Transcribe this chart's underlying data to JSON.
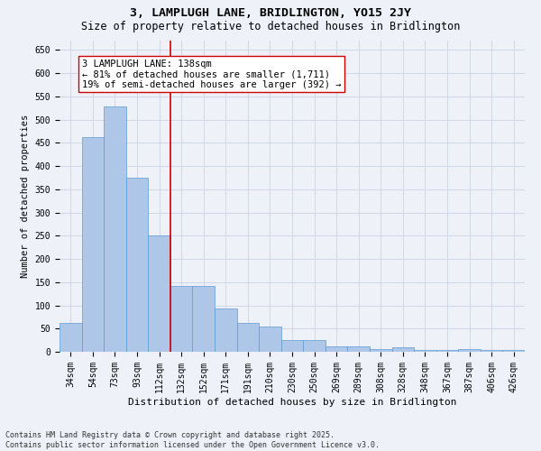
{
  "title": "3, LAMPLUGH LANE, BRIDLINGTON, YO15 2JY",
  "subtitle": "Size of property relative to detached houses in Bridlington",
  "xlabel": "Distribution of detached houses by size in Bridlington",
  "ylabel": "Number of detached properties",
  "categories": [
    "34sqm",
    "54sqm",
    "73sqm",
    "93sqm",
    "112sqm",
    "132sqm",
    "152sqm",
    "171sqm",
    "191sqm",
    "210sqm",
    "230sqm",
    "250sqm",
    "269sqm",
    "289sqm",
    "308sqm",
    "328sqm",
    "348sqm",
    "367sqm",
    "387sqm",
    "406sqm",
    "426sqm"
  ],
  "values": [
    62,
    463,
    528,
    375,
    250,
    141,
    141,
    93,
    62,
    55,
    25,
    25,
    11,
    11,
    6,
    10,
    4,
    4,
    6,
    4,
    3
  ],
  "bar_color": "#aec6e8",
  "bar_edge_color": "#5b9bd5",
  "grid_color": "#d0d8e8",
  "background_color": "#eef2f8",
  "vline_color": "#cc0000",
  "vline_x": 4.5,
  "annotation_text": "3 LAMPLUGH LANE: 138sqm\n← 81% of detached houses are smaller (1,711)\n19% of semi-detached houses are larger (392) →",
  "annotation_box_color": "#ffffff",
  "annotation_box_edge_color": "#cc0000",
  "ylim": [
    0,
    670
  ],
  "yticks": [
    0,
    50,
    100,
    150,
    200,
    250,
    300,
    350,
    400,
    450,
    500,
    550,
    600,
    650
  ],
  "footer": "Contains HM Land Registry data © Crown copyright and database right 2025.\nContains public sector information licensed under the Open Government Licence v3.0.",
  "title_fontsize": 9.5,
  "subtitle_fontsize": 8.5,
  "xlabel_fontsize": 8,
  "ylabel_fontsize": 7.5,
  "tick_fontsize": 7,
  "annotation_fontsize": 7.5,
  "footer_fontsize": 6
}
